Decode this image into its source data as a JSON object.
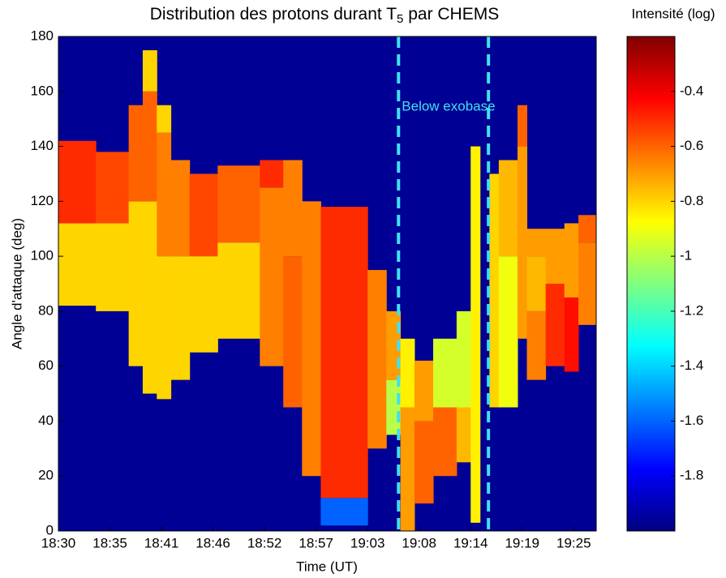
{
  "chart_data": {
    "type": "heatmap",
    "title": "Distribution des protons durant T",
    "title_subscript": "5",
    "title_end": " par CHEMS",
    "xlabel": "Time (UT)",
    "ylabel": "Angle d'attaque (deg)",
    "colorbar_label": "Intensité (log)",
    "annotation": "Below exobase",
    "xlim": [
      1110,
      1167.4
    ],
    "xticks": [
      {
        "value": 1110,
        "label": "18:30"
      },
      {
        "value": 1115.5,
        "label": "18:35"
      },
      {
        "value": 1121,
        "label": "18:41"
      },
      {
        "value": 1126.5,
        "label": "18:46"
      },
      {
        "value": 1132,
        "label": "18:52"
      },
      {
        "value": 1137.5,
        "label": "18:57"
      },
      {
        "value": 1143,
        "label": "19:03"
      },
      {
        "value": 1148.5,
        "label": "19:08"
      },
      {
        "value": 1154,
        "label": "19:14"
      },
      {
        "value": 1159.5,
        "label": "19:19"
      },
      {
        "value": 1165,
        "label": "19:25"
      }
    ],
    "ylim": [
      0,
      180
    ],
    "yticks": [
      0,
      20,
      40,
      60,
      80,
      100,
      120,
      140,
      160,
      180
    ],
    "clim": [
      -2.0,
      -0.2
    ],
    "cticks": [
      -1.8,
      -1.6,
      -1.4,
      -1.2,
      -1,
      -0.8,
      -0.6,
      -0.4
    ],
    "colormap": "jet",
    "vlines": {
      "color": "#40e0f0",
      "values": [
        1146.3,
        1155.9
      ]
    },
    "columns": [
      {
        "start": 1110,
        "end": 1114,
        "cells": [
          {
            "lo": 82,
            "hi": 112,
            "value": -0.8
          },
          {
            "lo": 112,
            "hi": 142,
            "value": -0.5
          }
        ]
      },
      {
        "start": 1114,
        "end": 1117.5,
        "cells": [
          {
            "lo": 80,
            "hi": 112,
            "value": -0.8
          },
          {
            "lo": 112,
            "hi": 138,
            "value": -0.55
          }
        ]
      },
      {
        "start": 1117.5,
        "end": 1119,
        "cells": [
          {
            "lo": 60,
            "hi": 120,
            "value": -0.8
          },
          {
            "lo": 120,
            "hi": 155,
            "value": -0.6
          }
        ]
      },
      {
        "start": 1119,
        "end": 1120.5,
        "cells": [
          {
            "lo": 50,
            "hi": 120,
            "value": -0.8
          },
          {
            "lo": 120,
            "hi": 160,
            "value": -0.6
          },
          {
            "lo": 160,
            "hi": 175,
            "value": -0.8
          }
        ]
      },
      {
        "start": 1120.5,
        "end": 1122,
        "cells": [
          {
            "lo": 48,
            "hi": 100,
            "value": -0.8
          },
          {
            "lo": 100,
            "hi": 145,
            "value": -0.65
          },
          {
            "lo": 145,
            "hi": 155,
            "value": -0.8
          }
        ]
      },
      {
        "start": 1122,
        "end": 1124,
        "cells": [
          {
            "lo": 55,
            "hi": 100,
            "value": -0.8
          },
          {
            "lo": 100,
            "hi": 135,
            "value": -0.65
          }
        ]
      },
      {
        "start": 1124,
        "end": 1127,
        "cells": [
          {
            "lo": 65,
            "hi": 100,
            "value": -0.8
          },
          {
            "lo": 100,
            "hi": 130,
            "value": -0.55
          }
        ]
      },
      {
        "start": 1127,
        "end": 1131.5,
        "cells": [
          {
            "lo": 70,
            "hi": 105,
            "value": -0.8
          },
          {
            "lo": 105,
            "hi": 133,
            "value": -0.6
          }
        ]
      },
      {
        "start": 1131.5,
        "end": 1134,
        "cells": [
          {
            "lo": 60,
            "hi": 125,
            "value": -0.65
          },
          {
            "lo": 125,
            "hi": 135,
            "value": -0.5
          }
        ]
      },
      {
        "start": 1134,
        "end": 1136,
        "cells": [
          {
            "lo": 45,
            "hi": 100,
            "value": -0.6
          },
          {
            "lo": 100,
            "hi": 135,
            "value": -0.65
          }
        ]
      },
      {
        "start": 1136,
        "end": 1138,
        "cells": [
          {
            "lo": 20,
            "hi": 120,
            "value": -0.65
          }
        ]
      },
      {
        "start": 1138,
        "end": 1143,
        "cells": [
          {
            "lo": 2,
            "hi": 12,
            "value": -1.6
          },
          {
            "lo": 12,
            "hi": 118,
            "value": -0.5
          }
        ]
      },
      {
        "start": 1143,
        "end": 1145,
        "cells": [
          {
            "lo": 30,
            "hi": 95,
            "value": -0.65
          }
        ]
      },
      {
        "start": 1145,
        "end": 1146.5,
        "cells": [
          {
            "lo": 35,
            "hi": 55,
            "value": -1.0
          },
          {
            "lo": 55,
            "hi": 80,
            "value": -0.7
          }
        ]
      },
      {
        "start": 1146.5,
        "end": 1148,
        "cells": [
          {
            "lo": 0,
            "hi": 45,
            "value": -0.7
          },
          {
            "lo": 45,
            "hi": 70,
            "value": -0.85
          }
        ]
      },
      {
        "start": 1148,
        "end": 1150,
        "cells": [
          {
            "lo": 10,
            "hi": 40,
            "value": -0.6
          },
          {
            "lo": 40,
            "hi": 62,
            "value": -0.7
          }
        ]
      },
      {
        "start": 1150,
        "end": 1152.5,
        "cells": [
          {
            "lo": 20,
            "hi": 45,
            "value": -0.6
          },
          {
            "lo": 45,
            "hi": 70,
            "value": -0.95
          }
        ]
      },
      {
        "start": 1152.5,
        "end": 1154,
        "cells": [
          {
            "lo": 25,
            "hi": 45,
            "value": -0.75
          },
          {
            "lo": 45,
            "hi": 80,
            "value": -0.95
          }
        ]
      },
      {
        "start": 1154,
        "end": 1155,
        "cells": [
          {
            "lo": 3,
            "hi": 140,
            "value": -0.85
          }
        ]
      },
      {
        "start": 1156,
        "end": 1157,
        "cells": [
          {
            "lo": 45,
            "hi": 130,
            "value": -0.8
          }
        ]
      },
      {
        "start": 1157,
        "end": 1159,
        "cells": [
          {
            "lo": 45,
            "hi": 100,
            "value": -0.9
          },
          {
            "lo": 100,
            "hi": 135,
            "value": -0.75
          }
        ]
      },
      {
        "start": 1159,
        "end": 1160,
        "cells": [
          {
            "lo": 70,
            "hi": 140,
            "value": -0.7
          },
          {
            "lo": 140,
            "hi": 155,
            "value": -0.6
          }
        ]
      },
      {
        "start": 1160,
        "end": 1162,
        "cells": [
          {
            "lo": 55,
            "hi": 80,
            "value": -0.65
          },
          {
            "lo": 80,
            "hi": 100,
            "value": -0.75
          },
          {
            "lo": 100,
            "hi": 110,
            "value": -0.7
          }
        ]
      },
      {
        "start": 1162,
        "end": 1164,
        "cells": [
          {
            "lo": 60,
            "hi": 90,
            "value": -0.5
          },
          {
            "lo": 90,
            "hi": 110,
            "value": -0.7
          }
        ]
      },
      {
        "start": 1164,
        "end": 1165.5,
        "cells": [
          {
            "lo": 58,
            "hi": 85,
            "value": -0.45
          },
          {
            "lo": 85,
            "hi": 112,
            "value": -0.7
          }
        ]
      },
      {
        "start": 1165.5,
        "end": 1167.4,
        "cells": [
          {
            "lo": 75,
            "hi": 105,
            "value": -0.65
          },
          {
            "lo": 105,
            "hi": 115,
            "value": -0.6
          }
        ]
      }
    ]
  }
}
